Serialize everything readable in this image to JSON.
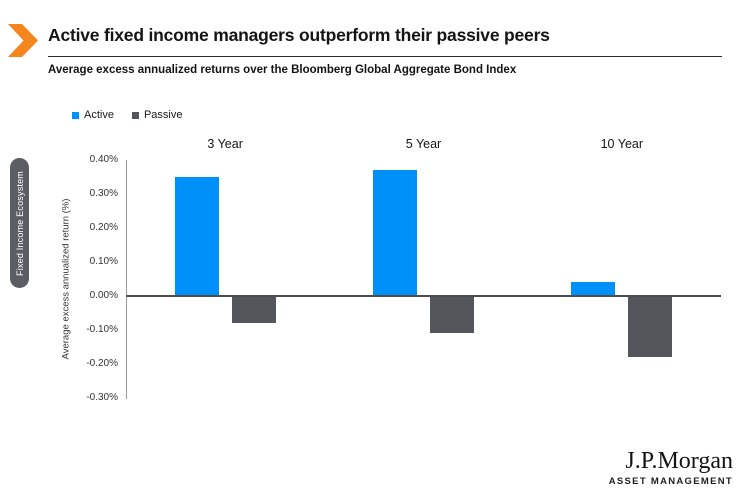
{
  "header": {
    "title": "Active fixed income managers outperform their passive peers",
    "subtitle": "Average excess annualized returns over the Bloomberg Global Aggregate Bond Index"
  },
  "sidebar_tab": {
    "label": "Fixed Income Ecosystem"
  },
  "legend": [
    {
      "label": "Active",
      "color": "#0090fa"
    },
    {
      "label": "Passive",
      "color": "#53565a"
    }
  ],
  "colors": {
    "accent_orange": "#f5861e",
    "active_blue": "#0090fa",
    "passive_gray": "#53565a"
  },
  "chart_data": {
    "type": "bar",
    "title": "Active fixed income managers outperform their passive peers",
    "subtitle": "Average excess annualized returns over the Bloomberg Global Aggregate Bond Index",
    "categories": [
      "3 Year",
      "5 Year",
      "10 Year"
    ],
    "series": [
      {
        "name": "Active",
        "color": "#0090fa",
        "values": [
          0.35,
          0.37,
          0.04
        ]
      },
      {
        "name": "Passive",
        "color": "#53565a",
        "values": [
          -0.08,
          -0.11,
          -0.18
        ]
      }
    ],
    "ylabel": "Average excess annualized return (%)",
    "ylim": [
      -0.3,
      0.4
    ],
    "yticks": [
      "0.40%",
      "0.30%",
      "0.20%",
      "0.10%",
      "0.00%",
      "-0.10%",
      "-0.20%",
      "-0.30%"
    ],
    "grid": false,
    "legend_position": "top-left"
  },
  "logo": {
    "brand": "J.P.Morgan",
    "division": "ASSET MANAGEMENT"
  }
}
